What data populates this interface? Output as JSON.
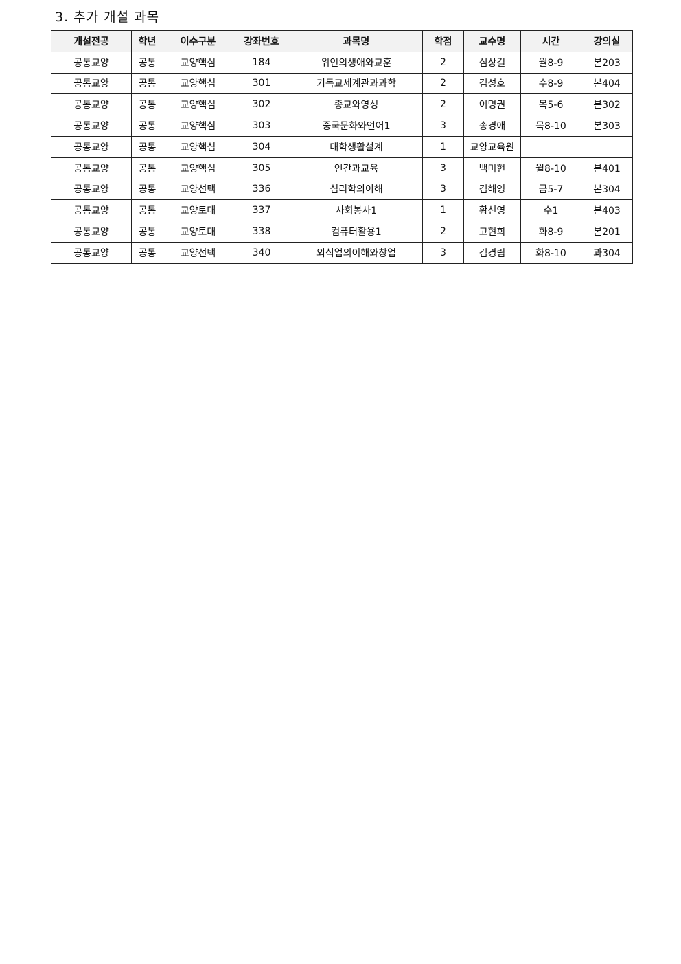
{
  "title": "3. 추가 개설 과목",
  "table": {
    "headers": [
      "개설전공",
      "학년",
      "이수구분",
      "강좌번호",
      "과목명",
      "학점",
      "교수명",
      "시간",
      "강의실"
    ],
    "rows": [
      [
        "공통교양",
        "공통",
        "교양핵심",
        "184",
        "위인의생애와교훈",
        "2",
        "심상길",
        "월8-9",
        "본203"
      ],
      [
        "공통교양",
        "공통",
        "교양핵심",
        "301",
        "기독교세계관과과학",
        "2",
        "김성호",
        "수8-9",
        "본404"
      ],
      [
        "공통교양",
        "공통",
        "교양핵심",
        "302",
        "종교와영성",
        "2",
        "이명권",
        "목5-6",
        "본302"
      ],
      [
        "공통교양",
        "공통",
        "교양핵심",
        "303",
        "중국문화와언어1",
        "3",
        "송경애",
        "목8-10",
        "본303"
      ],
      [
        "공통교양",
        "공통",
        "교양핵심",
        "304",
        "대학생활설계",
        "1",
        "교양교육원",
        "",
        ""
      ],
      [
        "공통교양",
        "공통",
        "교양핵심",
        "305",
        "인간과교육",
        "3",
        "백미현",
        "월8-10",
        "본401"
      ],
      [
        "공통교양",
        "공통",
        "교양선택",
        "336",
        "심리학의이해",
        "3",
        "김해영",
        "금5-7",
        "본304"
      ],
      [
        "공통교양",
        "공통",
        "교양토대",
        "337",
        "사회봉사1",
        "1",
        "황선영",
        "수1",
        "본403"
      ],
      [
        "공통교양",
        "공통",
        "교양토대",
        "338",
        "컴퓨터활용1",
        "2",
        "고현희",
        "화8-9",
        "본201"
      ],
      [
        "공통교양",
        "공통",
        "교양선택",
        "340",
        "외식업의이해와창업",
        "3",
        "김경림",
        "화8-10",
        "과304"
      ]
    ]
  }
}
